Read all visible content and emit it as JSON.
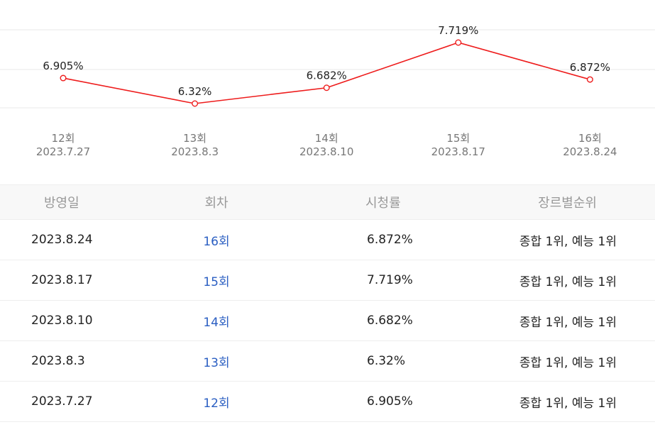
{
  "colors": {
    "line": "#ee1c1c",
    "link": "#2a5ec2",
    "header_bg": "#f8f8f8"
  },
  "chart_data": {
    "type": "line",
    "categories": [
      "12회",
      "13회",
      "14회",
      "15회",
      "16회"
    ],
    "dates": [
      "2023.7.27",
      "2023.8.3",
      "2023.8.10",
      "2023.8.17",
      "2023.8.24"
    ],
    "values": [
      6.905,
      6.32,
      6.682,
      7.719,
      6.872
    ],
    "data_labels": [
      "6.905%",
      "6.32%",
      "6.682%",
      "7.719%",
      "6.872%"
    ],
    "ylim": [
      6.0,
      8.0
    ],
    "grid": true,
    "legend": "none"
  },
  "table": {
    "headers": [
      "방영일",
      "회차",
      "시청률",
      "장르별순위"
    ],
    "rows": [
      {
        "date": "2023.8.24",
        "episode": "16회",
        "rating": "6.872%",
        "rank": "종합 1위, 예능 1위"
      },
      {
        "date": "2023.8.17",
        "episode": "15회",
        "rating": "7.719%",
        "rank": "종합 1위, 예능 1위"
      },
      {
        "date": "2023.8.10",
        "episode": "14회",
        "rating": "6.682%",
        "rank": "종합 1위, 예능 1위"
      },
      {
        "date": "2023.8.3",
        "episode": "13회",
        "rating": "6.32%",
        "rank": "종합 1위, 예능 1위"
      },
      {
        "date": "2023.7.27",
        "episode": "12회",
        "rating": "6.905%",
        "rank": "종합 1위, 예능 1위"
      }
    ]
  }
}
